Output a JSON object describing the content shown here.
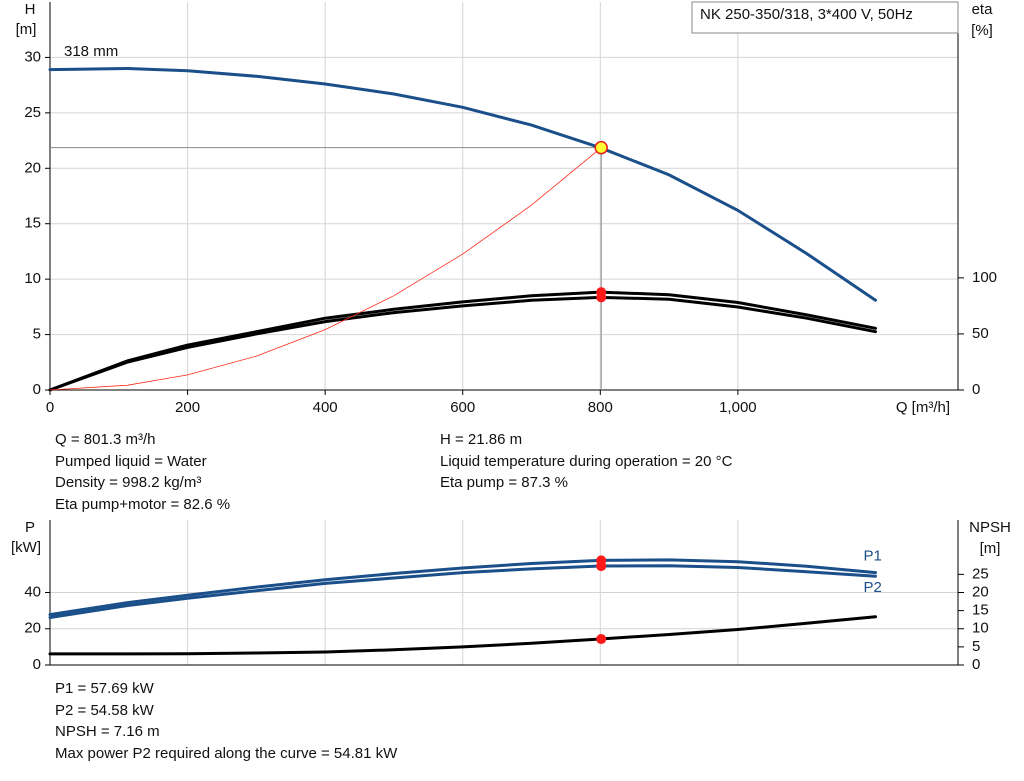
{
  "chart_data": [
    {
      "type": "line",
      "title": "NK 250-350/318, 3*400 V, 50Hz",
      "annotation": "318 mm",
      "ylabel": "H",
      "yunit": "[m]",
      "y2label": "eta",
      "y2unit": "[%]",
      "xlabel": "Q [m³/h]",
      "x": [
        0,
        113,
        200,
        300,
        400,
        500,
        600,
        700,
        800,
        900,
        1000,
        1100,
        1200
      ],
      "series": [
        {
          "color": "#1a4f8a",
          "values": [
            28.9,
            29.0,
            28.8,
            28.3,
            27.6,
            26.7,
            25.5,
            23.9,
            21.86,
            19.4,
            16.2,
            12.3,
            8.1
          ]
        },
        {
          "color": "#000000",
          "axis": "y2",
          "values": [
            0,
            26,
            40,
            52,
            64,
            72,
            78.6,
            84,
            87.3,
            85,
            78,
            67,
            55
          ]
        },
        {
          "color": "#000000",
          "axis": "y2",
          "values": [
            0,
            25,
            38,
            50,
            61,
            69,
            75,
            80,
            82.6,
            81,
            74,
            64,
            52
          ]
        },
        {
          "color": "#ff2a1a",
          "values": [
            0,
            0.43,
            1.36,
            3.06,
            5.45,
            8.51,
            12.26,
            16.68,
            21.79,
            null,
            null,
            null,
            null
          ]
        }
      ],
      "operating_point": {
        "x": 801.3,
        "y": 21.86,
        "y2": [
          87.3,
          82.6
        ]
      },
      "xlim": [
        0,
        1320
      ],
      "xticks": [
        0,
        200,
        400,
        600,
        800,
        {
          "value": 1000,
          "label": "1,000"
        }
      ],
      "ylim": [
        0,
        35
      ],
      "yticks": [
        0,
        5,
        10,
        15,
        20,
        25,
        30
      ],
      "y2lim": [
        0,
        346
      ],
      "y2ticks": [
        0,
        50,
        100
      ],
      "grid": true
    },
    {
      "type": "line",
      "ylabel": "P",
      "yunit": "[kW]",
      "y2label": "NPSH",
      "y2unit": "[m]",
      "x": [
        0,
        113,
        200,
        300,
        400,
        500,
        600,
        700,
        800,
        900,
        1000,
        1100,
        1200
      ],
      "series": [
        {
          "name": "P1",
          "color": "#1a4f8a",
          "values": [
            27.8,
            34.4,
            38.5,
            43,
            47,
            50.5,
            53.5,
            56,
            57.7,
            58,
            57,
            54.5,
            51
          ]
        },
        {
          "name": "P2",
          "color": "#1a4f8a",
          "values": [
            26.2,
            32.8,
            36.8,
            41,
            45,
            48,
            51,
            53,
            54.6,
            54.8,
            53.8,
            51.5,
            49
          ]
        },
        {
          "color": "#000000",
          "axis": "y2",
          "values": [
            3.05,
            3.05,
            3.1,
            3.3,
            3.6,
            4.2,
            5,
            6,
            7.16,
            8.4,
            9.8,
            11.5,
            13.3
          ]
        }
      ],
      "operating_point": {
        "x": 801.3,
        "y": [
          57.69,
          54.58
        ],
        "y2": [
          7.16
        ]
      },
      "xlim": [
        0,
        1320
      ],
      "ylim": [
        0,
        80
      ],
      "yticks": [
        0,
        20,
        40
      ],
      "y2lim": [
        0,
        40
      ],
      "y2ticks": [
        0,
        5,
        10,
        15,
        20,
        25
      ],
      "grid": true
    }
  ],
  "readout_top": [
    [
      "Q = 801.3 m³/h",
      "Pumped liquid = Water",
      "Density = 998.2 kg/m³",
      "Eta pump+motor = 82.6 %"
    ],
    [
      "H = 21.86 m",
      "Liquid temperature during operation = 20 °C",
      "Eta pump = 87.3 %"
    ]
  ],
  "readout_bottom": [
    "P1 = 57.69 kW",
    "P2 = 54.58 kW",
    "NPSH = 7.16 m",
    "Max power P2 required along the curve = 54.81 kW"
  ]
}
